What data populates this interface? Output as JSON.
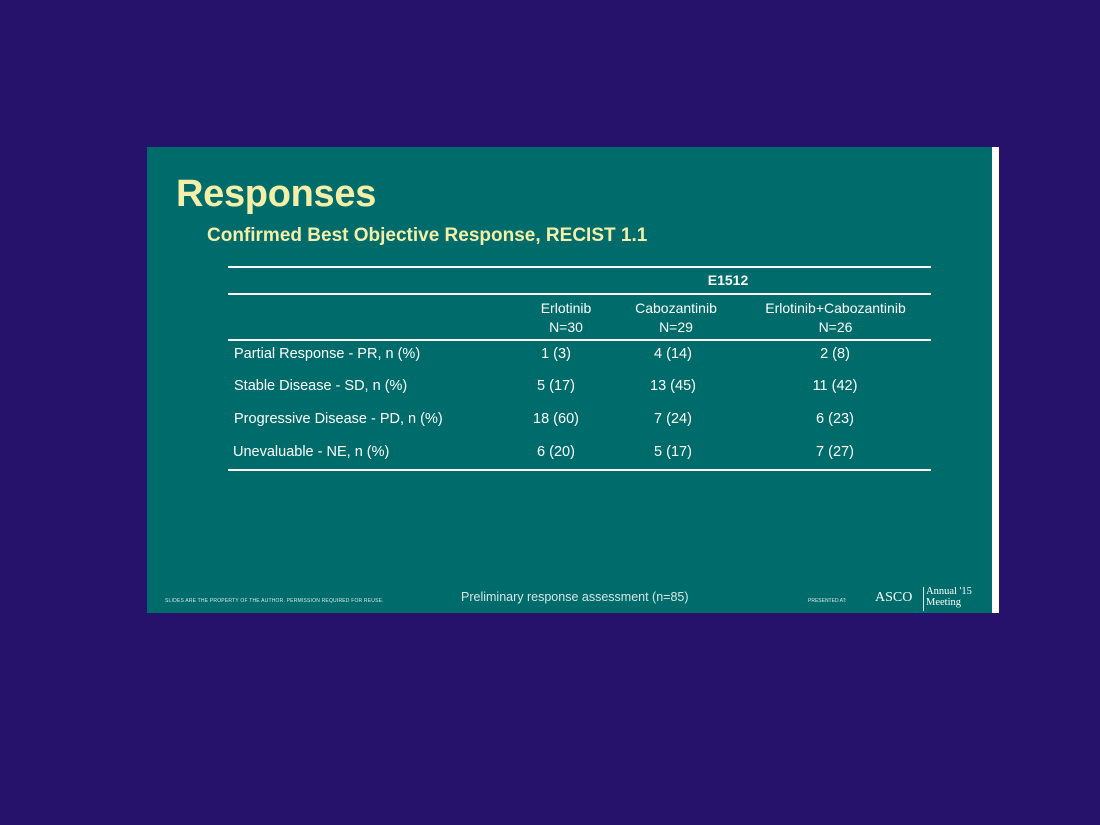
{
  "slide": {
    "title": "Responses",
    "subtitle": "Confirmed Best Objective Response, RECIST 1.1"
  },
  "table": {
    "group_header": "E1512",
    "columns": [
      {
        "name": "Erlotinib",
        "n": "N=30"
      },
      {
        "name": "Cabozantinib",
        "n": "N=29"
      },
      {
        "name": "Erlotinib+Cabozantinib",
        "n": "N=26"
      }
    ],
    "rows": [
      {
        "label": "Partial Response - PR, n (%)",
        "values": [
          "1 (3)",
          "4 (14)",
          "2 (8)"
        ]
      },
      {
        "label": "Stable Disease - SD, n (%)",
        "values": [
          "5 (17)",
          "13 (45)",
          "11 (42)"
        ]
      },
      {
        "label": "Progressive Disease - PD, n (%)",
        "values": [
          "18 (60)",
          "7 (24)",
          "6 (23)"
        ]
      },
      {
        "label": "Unevaluable - NE, n (%)",
        "values": [
          "6 (20)",
          "5 (17)",
          "7 (27)"
        ]
      }
    ]
  },
  "footer": {
    "disclaimer": "SLIDES ARE THE PROPERTY OF THE AUTHOR. PERMISSION REQUIRED FOR REUSE.",
    "note": "Preliminary response assessment (n=85)",
    "presented_at": "PRESENTED AT:",
    "logo_text": "ASCO",
    "meeting_line1": "Annual '15",
    "meeting_line2": "Meeting"
  },
  "colors": {
    "background": "#26116b",
    "slide": "#006b6b",
    "title": "#f3efa8",
    "text": "#ffffff"
  }
}
